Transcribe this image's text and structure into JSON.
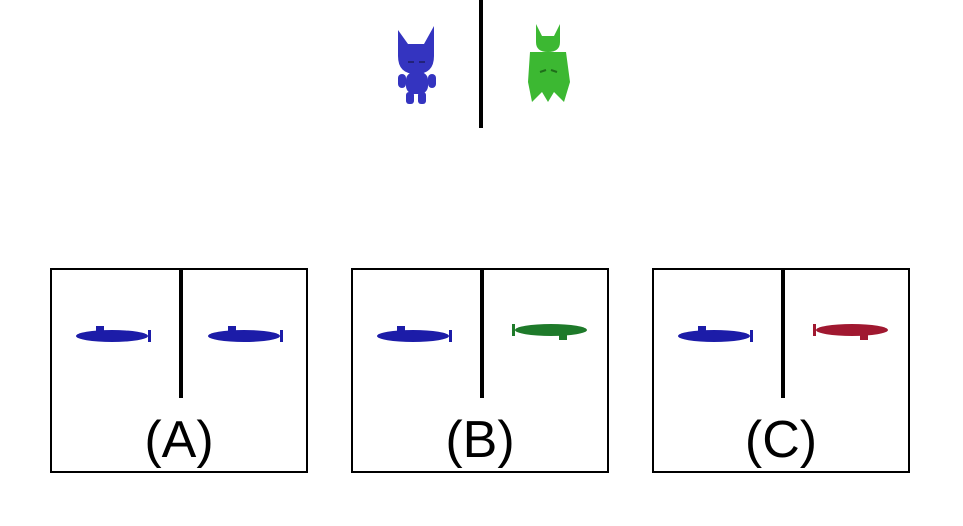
{
  "reference": {
    "left_figure": {
      "shape": "cat-creature",
      "color": "#3434c0"
    },
    "right_figure": {
      "shape": "horned-creature",
      "color": "#3cb832"
    }
  },
  "options": [
    {
      "label": "(A)",
      "left": {
        "shape": "submarine",
        "color": "#1c1ca8"
      },
      "right": {
        "shape": "submarine",
        "color": "#1c1ca8"
      }
    },
    {
      "label": "(B)",
      "left": {
        "shape": "submarine",
        "color": "#1c1ca8"
      },
      "right": {
        "shape": "submarine-flipped",
        "color": "#1e7a2a"
      }
    },
    {
      "label": "(C)",
      "left": {
        "shape": "submarine",
        "color": "#1c1ca8"
      },
      "right": {
        "shape": "submarine-flipped",
        "color": "#a01830"
      }
    }
  ]
}
